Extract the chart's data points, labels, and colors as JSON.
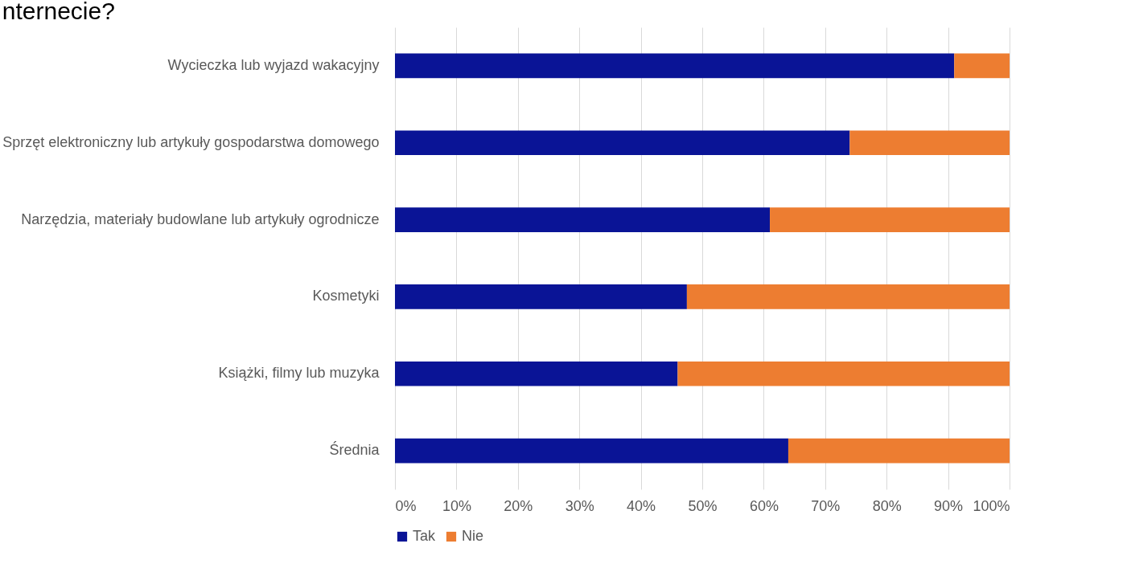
{
  "chart_data": {
    "type": "bar",
    "orientation": "horizontal",
    "stacked": true,
    "title": "nternecie?",
    "categories": [
      "Wycieczka lub wyjazd wakacyjny",
      "Sprzęt elektroniczny lub artykuły gospodarstwa domowego",
      "Narzędzia, materiały budowlane lub artykuły ogrodnicze",
      "Kosmetyki",
      "Książki, filmy lub muzyka",
      "Średnia"
    ],
    "series": [
      {
        "name": "Tak",
        "color": "#0a1496",
        "values": [
          91,
          74,
          61,
          47.5,
          46,
          64
        ]
      },
      {
        "name": "Nie",
        "color": "#ed7d31",
        "values": [
          9,
          26,
          39,
          52.5,
          54,
          36
        ]
      }
    ],
    "xlim": [
      0,
      100
    ],
    "xticks": [
      {
        "value": 0,
        "label": "0%"
      },
      {
        "value": 10,
        "label": "10%"
      },
      {
        "value": 20,
        "label": "20%"
      },
      {
        "value": 30,
        "label": "30%"
      },
      {
        "value": 40,
        "label": "40%"
      },
      {
        "value": 50,
        "label": "50%"
      },
      {
        "value": 60,
        "label": "60%"
      },
      {
        "value": 70,
        "label": "70%"
      },
      {
        "value": 80,
        "label": "80%"
      },
      {
        "value": 90,
        "label": "90%"
      },
      {
        "value": 100,
        "label": "100%"
      }
    ],
    "grid": "x",
    "legend": "bottom"
  }
}
